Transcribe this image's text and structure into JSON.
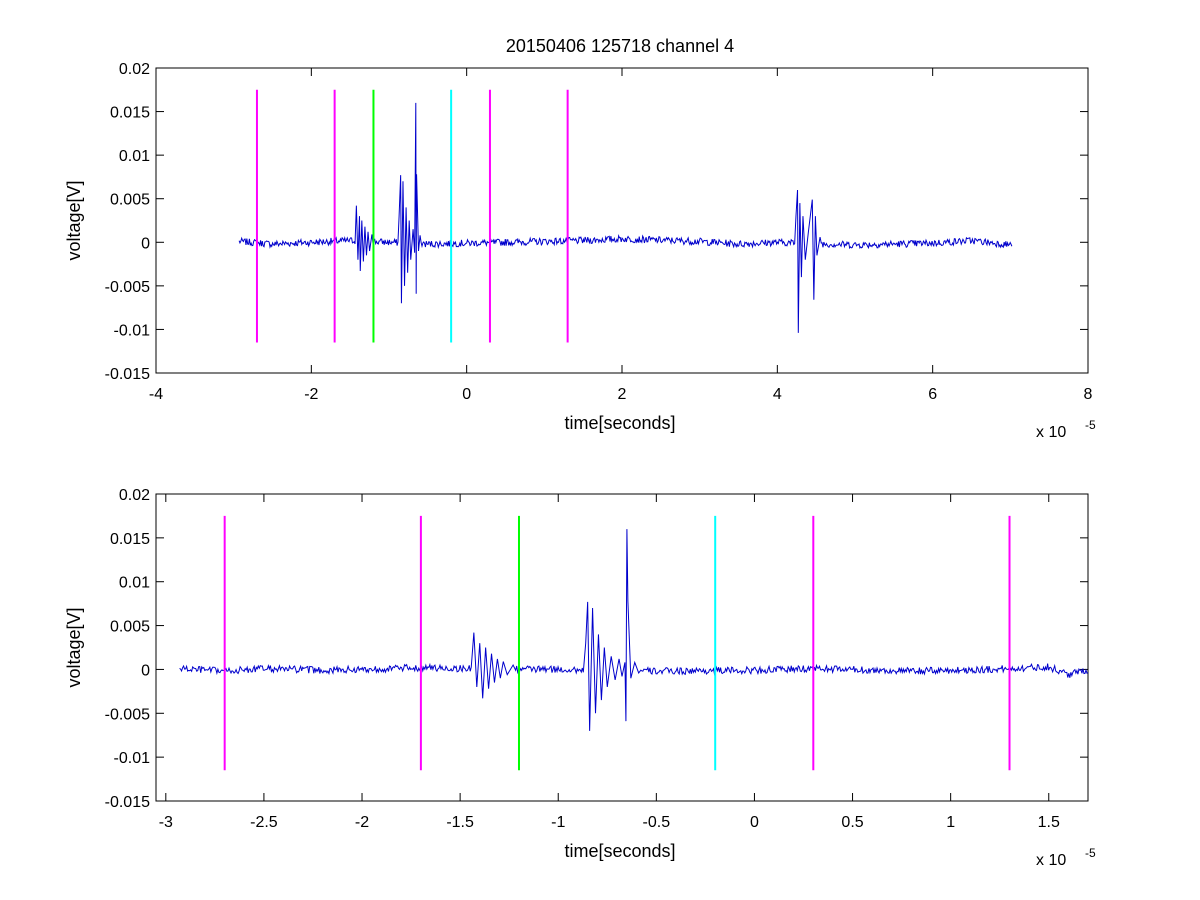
{
  "figure_title": "20150406 125718 channel 4",
  "colors": {
    "signal": "#0000cc",
    "magenta": "#ff00ff",
    "green": "#00ff00",
    "cyan": "#00ffff",
    "axes": "#000000"
  },
  "chart_data": [
    {
      "type": "line",
      "title": "20150406 125718 channel 4",
      "xlabel": "time[seconds]",
      "ylabel": "voltage[V]",
      "x_multiplier": "x 10",
      "x_multiplier_exp": "-5",
      "xlim": [
        -4,
        8
      ],
      "ylim": [
        -0.015,
        0.02
      ],
      "xticks": [
        -4,
        -2,
        0,
        2,
        4,
        6,
        8
      ],
      "xtick_labels": [
        "-4",
        "-2",
        "0",
        "2",
        "4",
        "6",
        "8"
      ],
      "yticks": [
        -0.015,
        -0.01,
        -0.005,
        0,
        0.005,
        0.01,
        0.015,
        0.02
      ],
      "ytick_labels": [
        "-0.015",
        "-0.01",
        "-0.005",
        "0",
        "0.005",
        "0.01",
        "0.015",
        "0.02"
      ],
      "grid": false,
      "markers": [
        {
          "x": -2.7,
          "color": "magenta",
          "y_range": [
            -0.0115,
            0.0175
          ]
        },
        {
          "x": -1.7,
          "color": "magenta",
          "y_range": [
            -0.0115,
            0.0175
          ]
        },
        {
          "x": -1.2,
          "color": "green",
          "y_range": [
            -0.0115,
            0.0175
          ]
        },
        {
          "x": -0.2,
          "color": "cyan",
          "y_range": [
            -0.0115,
            0.0175
          ]
        },
        {
          "x": 0.3,
          "color": "magenta",
          "y_range": [
            -0.0115,
            0.0175
          ]
        },
        {
          "x": 1.3,
          "color": "magenta",
          "y_range": [
            -0.0115,
            0.0175
          ]
        }
      ],
      "series": [
        {
          "color": "signal",
          "x_range": [
            -2.93,
            7.02
          ],
          "baseline": [
            [
              -2.93,
              0.0001
            ],
            [
              -2.5,
              -0.0002
            ],
            [
              -2.0,
              0.0
            ],
            [
              -1.5,
              0.0002
            ],
            [
              -0.5,
              -0.0002
            ],
            [
              0.5,
              0.0
            ],
            [
              1.5,
              0.0002
            ],
            [
              2.0,
              0.0004
            ],
            [
              3.0,
              0.0001
            ],
            [
              3.5,
              -0.0002
            ],
            [
              4.0,
              0.0
            ],
            [
              5.0,
              -0.0003
            ],
            [
              6.0,
              -0.0001
            ],
            [
              6.5,
              0.0002
            ],
            [
              7.02,
              -0.0003
            ]
          ],
          "bursts": [
            {
              "peaks": [
                [
                  -1.42,
                  0.0042
                ],
                [
                  -1.4,
                  -0.002
                ],
                [
                  -1.38,
                  0.003
                ],
                [
                  -1.37,
                  -0.0033
                ],
                [
                  -1.35,
                  0.0025
                ],
                [
                  -1.33,
                  -0.0022
                ],
                [
                  -1.31,
                  0.0018
                ],
                [
                  -1.29,
                  -0.0015
                ],
                [
                  -1.27,
                  0.0012
                ],
                [
                  -1.25,
                  -0.001
                ],
                [
                  -1.22,
                  0.0009
                ]
              ]
            },
            {
              "peaks": [
                [
                  -0.87,
                  0.003
                ],
                [
                  -0.85,
                  0.0077
                ],
                [
                  -0.84,
                  -0.007
                ],
                [
                  -0.82,
                  0.007
                ],
                [
                  -0.8,
                  -0.005
                ],
                [
                  -0.78,
                  0.004
                ],
                [
                  -0.76,
                  -0.0035
                ],
                [
                  -0.74,
                  0.0025
                ],
                [
                  -0.72,
                  -0.002
                ],
                [
                  -0.69,
                  0.0015
                ],
                [
                  -0.67,
                  -0.0012
                ],
                [
                  -0.655,
                  0.016
                ],
                [
                  -0.65,
                  -0.0059
                ],
                [
                  -0.645,
                  0.0078
                ],
                [
                  -0.62,
                  -0.001
                ],
                [
                  -0.6,
                  0.0008
                ]
              ]
            },
            {
              "peaks": [
                [
                  4.24,
                  0.003
                ],
                [
                  4.26,
                  0.006
                ],
                [
                  4.27,
                  -0.0104
                ],
                [
                  4.29,
                  0.0045
                ],
                [
                  4.31,
                  -0.004
                ],
                [
                  4.33,
                  0.003
                ],
                [
                  4.36,
                  -0.002
                ],
                [
                  4.4,
                  0.0012
                ],
                [
                  4.45,
                  0.0049
                ],
                [
                  4.47,
                  -0.0066
                ],
                [
                  4.49,
                  0.003
                ],
                [
                  4.51,
                  -0.0015
                ],
                [
                  4.55,
                  0.0006
                ]
              ]
            }
          ]
        }
      ]
    },
    {
      "type": "line",
      "title": "",
      "xlabel": "time[seconds]",
      "ylabel": "voltage[V]",
      "x_multiplier": "x 10",
      "x_multiplier_exp": "-5",
      "xlim": [
        -3.05,
        1.7
      ],
      "ylim": [
        -0.015,
        0.02
      ],
      "xticks": [
        -3,
        -2.5,
        -2,
        -1.5,
        -1,
        -0.5,
        0,
        0.5,
        1,
        1.5
      ],
      "xtick_labels": [
        "-3",
        "-2.5",
        "-2",
        "-1.5",
        "-1",
        "-0.5",
        "0",
        "0.5",
        "1",
        "1.5"
      ],
      "yticks": [
        -0.015,
        -0.01,
        -0.005,
        0,
        0.005,
        0.01,
        0.015,
        0.02
      ],
      "ytick_labels": [
        "-0.015",
        "-0.01",
        "-0.005",
        "0",
        "0.005",
        "0.01",
        "0.015",
        "0.02"
      ],
      "grid": false,
      "markers": [
        {
          "x": -2.7,
          "color": "magenta",
          "y_range": [
            -0.0115,
            0.0175
          ]
        },
        {
          "x": -1.7,
          "color": "magenta",
          "y_range": [
            -0.0115,
            0.0175
          ]
        },
        {
          "x": -1.2,
          "color": "green",
          "y_range": [
            -0.0115,
            0.0175
          ]
        },
        {
          "x": -0.2,
          "color": "cyan",
          "y_range": [
            -0.0115,
            0.0175
          ]
        },
        {
          "x": 0.3,
          "color": "magenta",
          "y_range": [
            -0.0115,
            0.0175
          ]
        },
        {
          "x": 1.3,
          "color": "magenta",
          "y_range": [
            -0.0115,
            0.0175
          ]
        }
      ],
      "series": [
        {
          "color": "signal",
          "x_range": [
            -2.93,
            1.7
          ],
          "baseline": [
            [
              -2.93,
              0.0001
            ],
            [
              -2.7,
              -0.0002
            ],
            [
              -2.5,
              0.0001
            ],
            [
              -2.2,
              -0.0001
            ],
            [
              -2.0,
              0.0
            ],
            [
              -1.7,
              0.0002
            ],
            [
              -1.5,
              0.0001
            ],
            [
              -1.0,
              0.0
            ],
            [
              -0.5,
              -0.0002
            ],
            [
              0.0,
              -0.0001
            ],
            [
              0.3,
              0.0001
            ],
            [
              0.8,
              -0.0002
            ],
            [
              1.2,
              0.0
            ],
            [
              1.5,
              0.0003
            ],
            [
              1.6,
              -0.0006
            ],
            [
              1.7,
              0.0
            ]
          ],
          "bursts": [
            {
              "peaks": [
                [
                  -1.43,
                  0.0042
                ],
                [
                  -1.415,
                  -0.002
                ],
                [
                  -1.4,
                  0.003
                ],
                [
                  -1.385,
                  -0.0033
                ],
                [
                  -1.37,
                  0.0025
                ],
                [
                  -1.355,
                  -0.0022
                ],
                [
                  -1.34,
                  0.0018
                ],
                [
                  -1.325,
                  -0.0015
                ],
                [
                  -1.31,
                  0.0012
                ],
                [
                  -1.295,
                  -0.001
                ],
                [
                  -1.28,
                  0.0009
                ],
                [
                  -1.26,
                  -0.0006
                ],
                [
                  -1.23,
                  0.0005
                ]
              ]
            },
            {
              "peaks": [
                [
                  -0.86,
                  0.003
                ],
                [
                  -0.85,
                  0.0077
                ],
                [
                  -0.84,
                  -0.007
                ],
                [
                  -0.825,
                  0.007
                ],
                [
                  -0.81,
                  -0.005
                ],
                [
                  -0.795,
                  0.004
                ],
                [
                  -0.78,
                  -0.0035
                ],
                [
                  -0.765,
                  0.0025
                ],
                [
                  -0.75,
                  -0.002
                ],
                [
                  -0.73,
                  0.0015
                ],
                [
                  -0.71,
                  -0.0012
                ],
                [
                  -0.69,
                  0.0012
                ],
                [
                  -0.675,
                  -0.0008
                ],
                [
                  -0.66,
                  0.0008
                ],
                [
                  -0.655,
                  -0.0059
                ],
                [
                  -0.65,
                  0.016
                ],
                [
                  -0.645,
                  0.0078
                ],
                [
                  -0.63,
                  -0.001
                ],
                [
                  -0.61,
                  0.0008
                ],
                [
                  -0.59,
                  -0.0004
                ]
              ]
            }
          ]
        }
      ]
    }
  ]
}
